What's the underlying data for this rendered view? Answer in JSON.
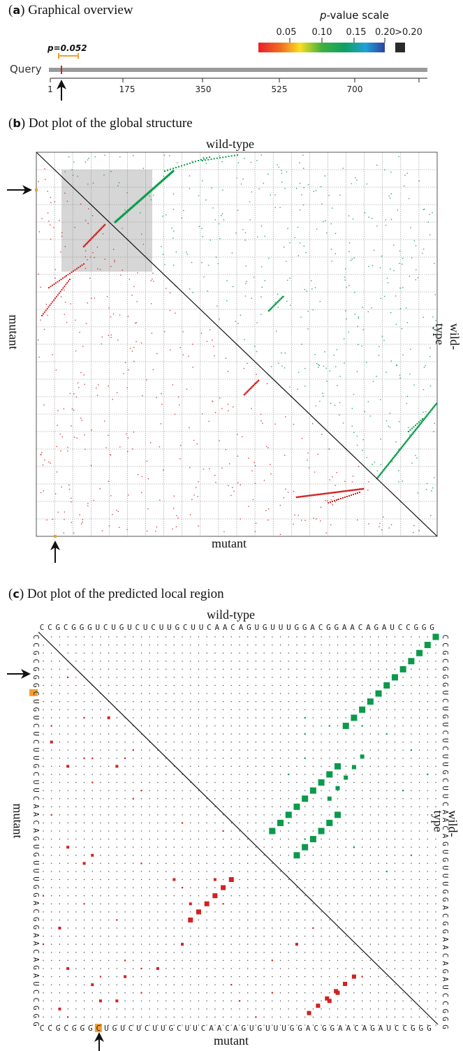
{
  "panel_a": {
    "letter": "a",
    "title": "Graphical overview",
    "scale_label_italic": "p",
    "scale_label_rest": "-value scale",
    "scale_ticks": [
      "0.05",
      "0.10",
      "0.15",
      "0.20"
    ],
    "scale_over": ">0.20",
    "query_label": "Query",
    "pvalue_label": "p=0.052",
    "axis_ticks": [
      "1",
      "175",
      "350",
      "525",
      "700"
    ]
  },
  "panel_b": {
    "letter": "b",
    "title": "Dot plot of the global structure",
    "top_label": "wild-type",
    "bottom_label": "mutant",
    "left_label": "mutant",
    "right_label": "wild-type"
  },
  "panel_c": {
    "letter": "c",
    "title": "Dot plot of the predicted local region",
    "top_label": "wild-type",
    "bottom_label": "mutant",
    "left_label": "mutant",
    "right_label": "wild-type",
    "sequence": "CCGCGGGUCUGUCUCUUGCUUCAACAGUGUUUGGACGGAACAGAUCCGGG",
    "mutant_sequence": "CCGCGGGCUGUCUCUUGCUUCAACAGUGUUUGGACGGAACAGAUCCGGG"
  },
  "colors": {
    "wildtype_dots": "#0a9a4a",
    "mutant_dots": "#d42020",
    "highlight": "#f0a030",
    "grid": "#777777"
  }
}
